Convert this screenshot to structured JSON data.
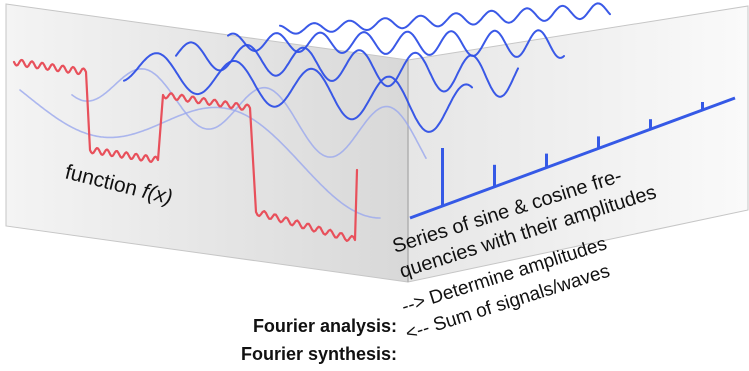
{
  "diagram": {
    "function_label": "function f(x)",
    "series_label_line1": "Series of sine & cosine fre-",
    "series_label_line2": "quencies with their amplitudes",
    "determine_label": "--> Determine amplitudes",
    "sum_label": "<-- Sum of signals/waves",
    "analysis_label": "Fourier analysis:",
    "synthesis_label": "Fourier synthesis:",
    "colors": {
      "function_curve": "#e8505b",
      "wave_strong": "#2f50e6",
      "wave_light": "#9aa8ee",
      "spectrum": "#3559e6",
      "panel": "#dcdcdc",
      "panel_edge": "#b9b9b9"
    },
    "wave_count": 6,
    "spectrum_bar_count": 6
  }
}
